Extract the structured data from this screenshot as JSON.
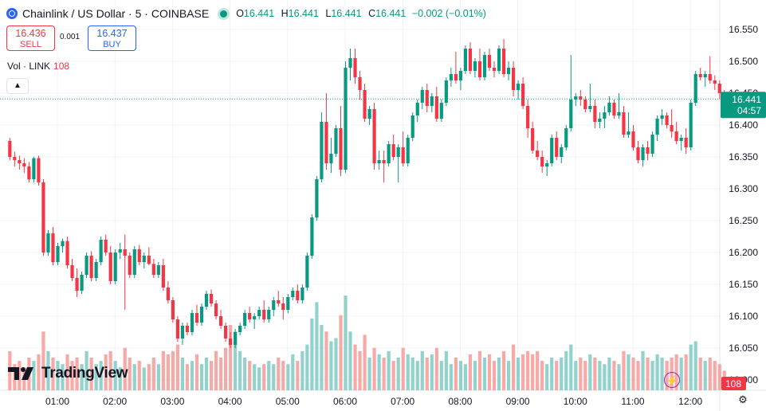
{
  "header": {
    "title": "Chainlink / US Dollar · 5 · COINBASE",
    "ohlc": {
      "o_label": "O",
      "o": "16.441",
      "h_label": "H",
      "h": "16.441",
      "l_label": "L",
      "l": "16.441",
      "c_label": "C",
      "c": "16.441",
      "change": "−0.002 (−0.01%)"
    }
  },
  "trade": {
    "sell_price": "16.436",
    "sell_label": "SELL",
    "spread": "0.001",
    "buy_price": "16.437",
    "buy_label": "BUY"
  },
  "volume_legend": {
    "label": "Vol · LINK",
    "value": "108"
  },
  "branding": {
    "logo": "TradingView"
  },
  "colors": {
    "up": "#089981",
    "down": "#f23645",
    "vol_up": "#92d2cc",
    "vol_down": "#f7a9a7",
    "last_price": "#089981"
  },
  "chart_data": {
    "type": "candlestick",
    "y_ticks": [
      "16.550",
      "16.500",
      "16.450",
      "16.400",
      "16.350",
      "16.300",
      "16.250",
      "16.200",
      "16.150",
      "16.100",
      "16.050",
      "16.000"
    ],
    "ylim": [
      16.0,
      16.575
    ],
    "x_ticks": [
      "01:00",
      "02:00",
      "03:00",
      "04:00",
      "05:00",
      "06:00",
      "07:00",
      "08:00",
      "09:00",
      "10:00",
      "11:00",
      "12:00"
    ],
    "last_price": {
      "value": 16.441,
      "label": "16.441",
      "countdown": "04:57"
    },
    "volume_label": "108",
    "candles": [
      [
        16.375,
        16.38,
        16.345,
        16.35,
        12
      ],
      [
        16.35,
        16.358,
        16.335,
        16.345,
        8
      ],
      [
        16.345,
        16.352,
        16.33,
        16.34,
        9
      ],
      [
        16.34,
        16.348,
        16.325,
        16.335,
        7
      ],
      [
        16.335,
        16.342,
        16.31,
        16.315,
        10
      ],
      [
        16.315,
        16.35,
        16.31,
        16.348,
        9
      ],
      [
        16.348,
        16.352,
        16.305,
        16.31,
        11
      ],
      [
        16.31,
        16.315,
        16.195,
        16.2,
        18
      ],
      [
        16.2,
        16.235,
        16.195,
        16.23,
        12
      ],
      [
        16.23,
        16.24,
        16.18,
        16.185,
        10
      ],
      [
        16.185,
        16.215,
        16.18,
        16.21,
        9
      ],
      [
        16.21,
        16.222,
        16.2,
        16.218,
        8
      ],
      [
        16.218,
        16.225,
        16.175,
        16.18,
        11
      ],
      [
        16.18,
        16.19,
        16.155,
        16.16,
        9
      ],
      [
        16.16,
        16.175,
        16.13,
        16.14,
        10
      ],
      [
        16.14,
        16.17,
        16.135,
        16.165,
        8
      ],
      [
        16.165,
        16.2,
        16.16,
        16.195,
        12
      ],
      [
        16.195,
        16.202,
        16.155,
        16.16,
        10
      ],
      [
        16.16,
        16.19,
        16.155,
        16.185,
        8
      ],
      [
        16.185,
        16.225,
        16.18,
        16.22,
        9
      ],
      [
        16.22,
        16.228,
        16.195,
        16.2,
        11
      ],
      [
        16.2,
        16.21,
        16.15,
        16.155,
        12
      ],
      [
        16.155,
        16.205,
        16.15,
        16.2,
        9
      ],
      [
        16.2,
        16.215,
        16.19,
        16.205,
        7
      ],
      [
        16.205,
        16.228,
        16.11,
        16.195,
        13
      ],
      [
        16.195,
        16.2,
        16.16,
        16.165,
        10
      ],
      [
        16.165,
        16.21,
        16.16,
        16.205,
        8
      ],
      [
        16.205,
        16.212,
        16.18,
        16.185,
        9
      ],
      [
        16.185,
        16.2,
        16.175,
        16.195,
        7
      ],
      [
        16.195,
        16.208,
        16.18,
        16.182,
        8
      ],
      [
        16.182,
        16.19,
        16.16,
        16.165,
        10
      ],
      [
        16.165,
        16.185,
        16.16,
        16.18,
        8
      ],
      [
        16.18,
        16.19,
        16.14,
        16.145,
        12
      ],
      [
        16.145,
        16.155,
        16.12,
        16.125,
        11
      ],
      [
        16.125,
        16.13,
        16.09,
        16.095,
        12
      ],
      [
        16.095,
        16.1,
        16.06,
        16.065,
        14
      ],
      [
        16.065,
        16.09,
        16.055,
        16.085,
        10
      ],
      [
        16.085,
        16.09,
        16.07,
        16.075,
        8
      ],
      [
        16.075,
        16.11,
        16.07,
        16.105,
        9
      ],
      [
        16.105,
        16.118,
        16.085,
        16.09,
        11
      ],
      [
        16.09,
        16.12,
        16.085,
        16.115,
        8
      ],
      [
        16.115,
        16.14,
        16.11,
        16.135,
        10
      ],
      [
        16.135,
        16.142,
        16.115,
        16.12,
        9
      ],
      [
        16.12,
        16.125,
        16.095,
        16.1,
        12
      ],
      [
        16.1,
        16.11,
        16.08,
        16.085,
        10
      ],
      [
        16.085,
        16.09,
        16.06,
        16.065,
        13
      ],
      [
        16.065,
        16.075,
        16.05,
        16.055,
        20
      ],
      [
        16.055,
        16.08,
        16.05,
        16.075,
        18
      ],
      [
        16.075,
        16.09,
        16.07,
        16.085,
        12
      ],
      [
        16.085,
        16.11,
        16.08,
        16.105,
        10
      ],
      [
        16.105,
        16.115,
        16.09,
        16.095,
        9
      ],
      [
        16.095,
        16.105,
        16.08,
        16.1,
        8
      ],
      [
        16.1,
        16.115,
        16.095,
        16.11,
        7
      ],
      [
        16.11,
        16.125,
        16.09,
        16.095,
        8
      ],
      [
        16.095,
        16.115,
        16.09,
        16.11,
        9
      ],
      [
        16.11,
        16.13,
        16.1,
        16.125,
        8
      ],
      [
        16.125,
        16.14,
        16.115,
        16.12,
        10
      ],
      [
        16.12,
        16.13,
        16.095,
        16.11,
        9
      ],
      [
        16.11,
        16.135,
        16.105,
        16.13,
        8
      ],
      [
        16.13,
        16.145,
        16.125,
        16.14,
        11
      ],
      [
        16.14,
        16.15,
        16.12,
        16.125,
        9
      ],
      [
        16.125,
        16.15,
        16.12,
        16.145,
        12
      ],
      [
        16.145,
        16.2,
        16.14,
        16.195,
        14
      ],
      [
        16.195,
        16.26,
        16.19,
        16.255,
        22
      ],
      [
        16.255,
        16.32,
        16.25,
        16.315,
        27
      ],
      [
        16.315,
        16.42,
        16.31,
        16.405,
        20
      ],
      [
        16.405,
        16.45,
        16.33,
        16.34,
        18
      ],
      [
        16.34,
        16.38,
        16.325,
        16.355,
        15
      ],
      [
        16.355,
        16.4,
        16.35,
        16.395,
        16
      ],
      [
        16.395,
        16.43,
        16.32,
        16.33,
        23
      ],
      [
        16.33,
        16.5,
        16.325,
        16.49,
        29
      ],
      [
        16.49,
        16.52,
        16.47,
        16.505,
        18
      ],
      [
        16.505,
        16.52,
        16.465,
        16.475,
        14
      ],
      [
        16.475,
        16.485,
        16.44,
        16.455,
        12
      ],
      [
        16.455,
        16.465,
        16.405,
        16.41,
        17
      ],
      [
        16.41,
        16.43,
        16.4,
        16.425,
        10
      ],
      [
        16.425,
        16.435,
        16.33,
        16.34,
        13
      ],
      [
        16.34,
        16.36,
        16.33,
        16.345,
        11
      ],
      [
        16.345,
        16.36,
        16.31,
        16.34,
        10
      ],
      [
        16.34,
        16.375,
        16.335,
        16.37,
        12
      ],
      [
        16.37,
        16.385,
        16.345,
        16.35,
        9
      ],
      [
        16.35,
        16.37,
        16.31,
        16.365,
        10
      ],
      [
        16.365,
        16.39,
        16.335,
        16.34,
        13
      ],
      [
        16.34,
        16.385,
        16.335,
        16.38,
        11
      ],
      [
        16.38,
        16.42,
        16.375,
        16.415,
        10
      ],
      [
        16.415,
        16.44,
        16.405,
        16.435,
        9
      ],
      [
        16.435,
        16.46,
        16.425,
        16.455,
        12
      ],
      [
        16.455,
        16.465,
        16.42,
        16.43,
        10
      ],
      [
        16.43,
        16.45,
        16.42,
        16.445,
        11
      ],
      [
        16.445,
        16.46,
        16.405,
        16.41,
        13
      ],
      [
        16.41,
        16.44,
        16.405,
        16.435,
        9
      ],
      [
        16.435,
        16.475,
        16.43,
        16.47,
        12
      ],
      [
        16.47,
        16.49,
        16.46,
        16.48,
        8
      ],
      [
        16.48,
        16.515,
        16.465,
        16.47,
        10
      ],
      [
        16.47,
        16.49,
        16.455,
        16.485,
        9
      ],
      [
        16.485,
        16.525,
        16.48,
        16.52,
        8
      ],
      [
        16.52,
        16.53,
        16.48,
        16.485,
        11
      ],
      [
        16.485,
        16.505,
        16.475,
        16.5,
        9
      ],
      [
        16.5,
        16.52,
        16.47,
        16.475,
        12
      ],
      [
        16.475,
        16.515,
        16.47,
        16.51,
        10
      ],
      [
        16.51,
        16.52,
        16.485,
        16.49,
        11
      ],
      [
        16.49,
        16.5,
        16.475,
        16.485,
        9
      ],
      [
        16.485,
        16.525,
        16.48,
        16.52,
        10
      ],
      [
        16.52,
        16.535,
        16.475,
        16.48,
        12
      ],
      [
        16.48,
        16.5,
        16.47,
        16.49,
        9
      ],
      [
        16.49,
        16.5,
        16.445,
        16.455,
        14
      ],
      [
        16.455,
        16.47,
        16.44,
        16.465,
        10
      ],
      [
        16.465,
        16.475,
        16.425,
        16.43,
        11
      ],
      [
        16.43,
        16.44,
        16.38,
        16.395,
        12
      ],
      [
        16.395,
        16.405,
        16.355,
        16.36,
        11
      ],
      [
        16.36,
        16.375,
        16.345,
        16.35,
        12
      ],
      [
        16.35,
        16.36,
        16.325,
        16.335,
        9
      ],
      [
        16.335,
        16.345,
        16.32,
        16.34,
        8
      ],
      [
        16.34,
        16.385,
        16.335,
        16.38,
        10
      ],
      [
        16.38,
        16.39,
        16.345,
        16.35,
        9
      ],
      [
        16.35,
        16.37,
        16.34,
        16.365,
        10
      ],
      [
        16.365,
        16.4,
        16.36,
        16.395,
        12
      ],
      [
        16.395,
        16.51,
        16.39,
        16.44,
        14
      ],
      [
        16.44,
        16.45,
        16.43,
        16.445,
        9
      ],
      [
        16.445,
        16.455,
        16.43,
        16.44,
        10
      ],
      [
        16.44,
        16.445,
        16.42,
        16.425,
        9
      ],
      [
        16.425,
        16.465,
        16.42,
        16.43,
        11
      ],
      [
        16.43,
        16.44,
        16.395,
        16.405,
        10
      ],
      [
        16.405,
        16.42,
        16.395,
        16.41,
        9
      ],
      [
        16.41,
        16.43,
        16.395,
        16.42,
        8
      ],
      [
        16.42,
        16.445,
        16.415,
        16.435,
        10
      ],
      [
        16.435,
        16.44,
        16.41,
        16.415,
        9
      ],
      [
        16.415,
        16.45,
        16.41,
        16.42,
        8
      ],
      [
        16.42,
        16.43,
        16.38,
        16.385,
        12
      ],
      [
        16.385,
        16.42,
        16.38,
        16.39,
        11
      ],
      [
        16.39,
        16.4,
        16.36,
        16.365,
        10
      ],
      [
        16.365,
        16.375,
        16.34,
        16.345,
        9
      ],
      [
        16.345,
        16.37,
        16.335,
        16.365,
        12
      ],
      [
        16.365,
        16.375,
        16.345,
        16.355,
        10
      ],
      [
        16.355,
        16.39,
        16.35,
        16.385,
        9
      ],
      [
        16.385,
        16.415,
        16.375,
        16.41,
        11
      ],
      [
        16.41,
        16.425,
        16.4,
        16.415,
        10
      ],
      [
        16.415,
        16.42,
        16.395,
        16.4,
        9
      ],
      [
        16.4,
        16.425,
        16.38,
        16.39,
        10
      ],
      [
        16.39,
        16.405,
        16.37,
        16.375,
        11
      ],
      [
        16.375,
        16.385,
        16.36,
        16.38,
        10
      ],
      [
        16.38,
        16.395,
        16.355,
        16.365,
        11
      ],
      [
        16.365,
        16.44,
        16.36,
        16.435,
        14
      ],
      [
        16.435,
        16.485,
        16.43,
        16.48,
        15
      ],
      [
        16.48,
        16.49,
        16.47,
        16.475,
        10
      ],
      [
        16.475,
        16.485,
        16.46,
        16.48,
        9
      ],
      [
        16.48,
        16.508,
        16.465,
        16.47,
        10
      ],
      [
        16.47,
        16.478,
        16.455,
        16.465,
        9
      ],
      [
        16.465,
        16.47,
        16.44,
        16.45,
        8
      ],
      [
        16.45,
        16.455,
        16.43,
        16.441,
        6
      ]
    ]
  }
}
